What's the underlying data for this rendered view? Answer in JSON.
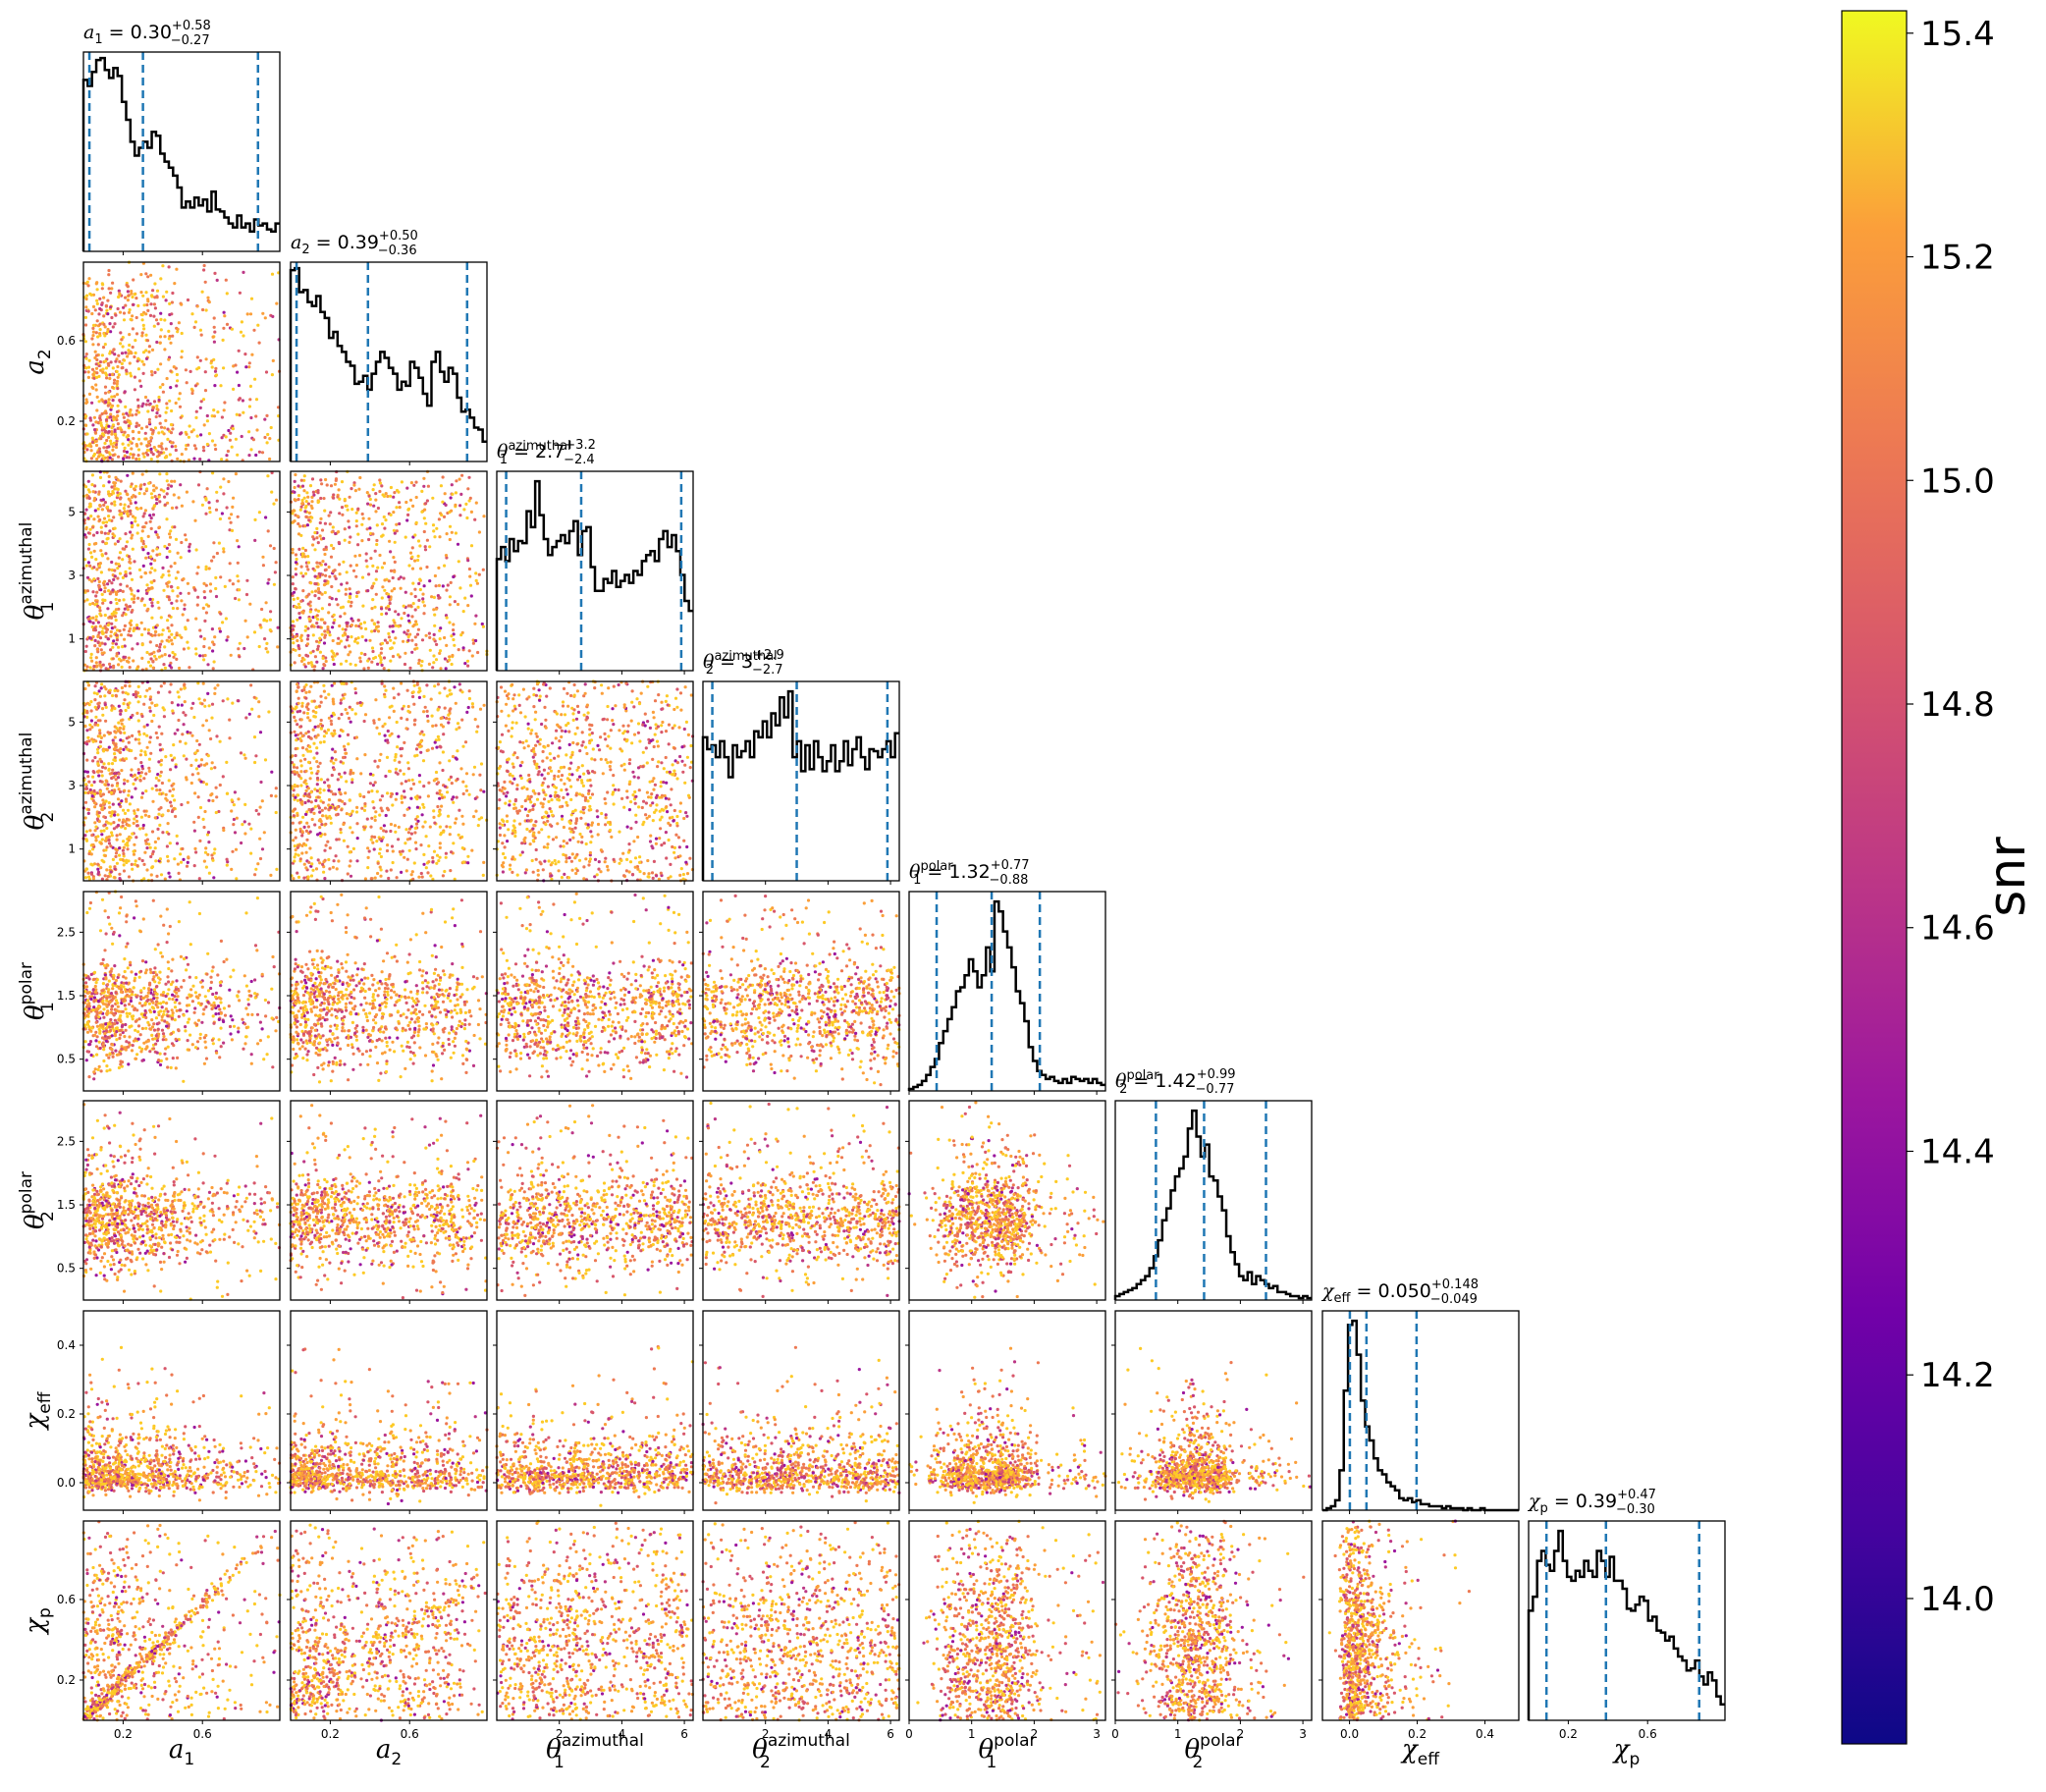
{
  "chart_data": {
    "type": "scatter",
    "description_kind": "corner plot",
    "parameters": [
      {
        "key": "a1",
        "sym": "a",
        "sub": "1",
        "sup": "",
        "range": [
          0.0,
          0.99
        ],
        "xticks": [
          "0.2",
          "0.6"
        ],
        "xtick_vals": [
          0.2,
          0.6
        ],
        "yticks": [],
        "ytick_vals": [],
        "title": {
          "value": "0.30",
          "plus": "+0.58",
          "minus": "−0.27"
        },
        "quantiles": [
          0.03,
          0.3,
          0.88
        ],
        "hist": [
          0.86,
          0.83,
          0.9,
          0.96,
          0.97,
          0.91,
          0.87,
          0.92,
          0.88,
          0.75,
          0.66,
          0.55,
          0.48,
          0.52,
          0.55,
          0.52,
          0.6,
          0.58,
          0.49,
          0.45,
          0.42,
          0.38,
          0.32,
          0.22,
          0.25,
          0.22,
          0.27,
          0.23,
          0.26,
          0.2,
          0.3,
          0.21,
          0.2,
          0.17,
          0.14,
          0.12,
          0.18,
          0.12,
          0.14,
          0.1,
          0.16,
          0.13,
          0.14,
          0.11,
          0.1,
          0.14
        ]
      },
      {
        "key": "a2",
        "sym": "a",
        "sub": "2",
        "sup": "",
        "range": [
          0.0,
          0.99
        ],
        "xticks": [
          "0.2",
          "0.6"
        ],
        "xtick_vals": [
          0.2,
          0.6
        ],
        "yticks": [
          "0.2",
          "0.6"
        ],
        "ytick_vals": [
          0.2,
          0.6
        ],
        "title": {
          "value": "0.39",
          "plus": "+0.50",
          "minus": "−0.36"
        },
        "quantiles": [
          0.03,
          0.39,
          0.89
        ],
        "hist": [
          0.96,
          0.97,
          0.85,
          0.86,
          0.8,
          0.78,
          0.83,
          0.75,
          0.72,
          0.62,
          0.65,
          0.58,
          0.55,
          0.5,
          0.48,
          0.39,
          0.4,
          0.43,
          0.36,
          0.44,
          0.5,
          0.55,
          0.52,
          0.47,
          0.44,
          0.36,
          0.4,
          0.38,
          0.5,
          0.47,
          0.42,
          0.34,
          0.28,
          0.5,
          0.55,
          0.45,
          0.4,
          0.47,
          0.44,
          0.32,
          0.25,
          0.26,
          0.22,
          0.17,
          0.16,
          0.1
        ]
      },
      {
        "key": "theta1az",
        "sym": "θ",
        "sub": "1",
        "sup": "azimuthal",
        "range": [
          0.0,
          6.28
        ],
        "xticks": [
          "2",
          "4",
          "6"
        ],
        "xtick_vals": [
          2,
          4,
          6
        ],
        "yticks": [
          "1",
          "3",
          "5"
        ],
        "ytick_vals": [
          1,
          3,
          5
        ],
        "title": {
          "value": "2.7",
          "plus": "+3.2",
          "minus": "−2.4"
        },
        "quantiles": [
          0.3,
          2.7,
          5.9
        ],
        "hist": [
          0.56,
          0.62,
          0.55,
          0.66,
          0.6,
          0.65,
          0.64,
          0.8,
          0.72,
          0.95,
          0.78,
          0.66,
          0.58,
          0.62,
          0.65,
          0.68,
          0.64,
          0.7,
          0.75,
          0.58,
          0.7,
          0.72,
          0.52,
          0.4,
          0.4,
          0.46,
          0.44,
          0.5,
          0.42,
          0.45,
          0.48,
          0.44,
          0.5,
          0.48,
          0.55,
          0.58,
          0.6,
          0.55,
          0.66,
          0.7,
          0.62,
          0.68,
          0.6,
          0.48,
          0.35,
          0.3
        ]
      },
      {
        "key": "theta2az",
        "sym": "θ",
        "sub": "2",
        "sup": "azimuthal",
        "range": [
          0.0,
          6.28
        ],
        "xticks": [
          "2",
          "4",
          "6"
        ],
        "xtick_vals": [
          2,
          4,
          6
        ],
        "yticks": [
          "1",
          "3",
          "5"
        ],
        "ytick_vals": [
          1,
          3,
          5
        ],
        "title": {
          "value": "3",
          "plus": "+2.9",
          "minus": "−2.7"
        },
        "quantiles": [
          0.3,
          3.0,
          5.9
        ],
        "hist": [
          0.72,
          0.66,
          0.68,
          0.62,
          0.7,
          0.62,
          0.52,
          0.68,
          0.62,
          0.65,
          0.7,
          0.62,
          0.75,
          0.72,
          0.8,
          0.72,
          0.84,
          0.78,
          0.92,
          0.82,
          0.95,
          0.62,
          0.7,
          0.55,
          0.68,
          0.56,
          0.7,
          0.62,
          0.55,
          0.6,
          0.68,
          0.55,
          0.6,
          0.7,
          0.58,
          0.66,
          0.72,
          0.62,
          0.56,
          0.66,
          0.65,
          0.62,
          0.66,
          0.7,
          0.62,
          0.74
        ]
      },
      {
        "key": "theta1pol",
        "sym": "θ",
        "sub": "1",
        "sup": "polar",
        "range": [
          0.0,
          3.14
        ],
        "xticks": [
          "0",
          "1",
          "2",
          "3"
        ],
        "xtick_vals": [
          0,
          1,
          2,
          3
        ],
        "yticks": [
          "0.5",
          "1.5",
          "2.5"
        ],
        "ytick_vals": [
          0.5,
          1.5,
          2.5
        ],
        "title": {
          "value": "1.32",
          "plus": "+0.77",
          "minus": "−0.88"
        },
        "quantiles": [
          0.44,
          1.32,
          2.09
        ],
        "hist": [
          0.01,
          0.02,
          0.03,
          0.05,
          0.08,
          0.12,
          0.16,
          0.24,
          0.3,
          0.36,
          0.42,
          0.5,
          0.52,
          0.58,
          0.66,
          0.6,
          0.52,
          0.58,
          0.72,
          0.6,
          0.95,
          0.9,
          0.8,
          0.72,
          0.62,
          0.5,
          0.44,
          0.35,
          0.22,
          0.15,
          0.1,
          0.08,
          0.06,
          0.07,
          0.05,
          0.04,
          0.06,
          0.04,
          0.07,
          0.06,
          0.05,
          0.06,
          0.04,
          0.06,
          0.04,
          0.03
        ]
      },
      {
        "key": "theta2pol",
        "sym": "θ",
        "sub": "2",
        "sup": "polar",
        "range": [
          0.0,
          3.14
        ],
        "xticks": [
          "0",
          "1",
          "2",
          "3"
        ],
        "xtick_vals": [
          0,
          1,
          2,
          3
        ],
        "yticks": [
          "0.5",
          "1.5",
          "2.5"
        ],
        "ytick_vals": [
          0.5,
          1.5,
          2.5
        ],
        "title": {
          "value": "1.42",
          "plus": "+0.99",
          "minus": "−0.77"
        },
        "quantiles": [
          0.65,
          1.42,
          2.41
        ],
        "hist": [
          0.02,
          0.03,
          0.04,
          0.05,
          0.06,
          0.08,
          0.1,
          0.12,
          0.16,
          0.22,
          0.3,
          0.4,
          0.46,
          0.55,
          0.62,
          0.66,
          0.72,
          0.86,
          0.95,
          0.82,
          0.72,
          0.78,
          0.62,
          0.6,
          0.52,
          0.45,
          0.32,
          0.24,
          0.18,
          0.12,
          0.1,
          0.14,
          0.08,
          0.12,
          0.1,
          0.08,
          0.06,
          0.07,
          0.04,
          0.04,
          0.03,
          0.02,
          0.02,
          0.01,
          0.02,
          0.01
        ]
      },
      {
        "key": "chieff",
        "sym": "χ",
        "sub": "eff",
        "sup": "",
        "range": [
          -0.08,
          0.5
        ],
        "xticks": [
          "0.0",
          "0.2",
          "0.4"
        ],
        "xtick_vals": [
          0.0,
          0.2,
          0.4
        ],
        "yticks": [
          "0.0",
          "0.2",
          "0.4"
        ],
        "ytick_vals": [
          0.0,
          0.2,
          0.4
        ],
        "title": {
          "value": "0.050",
          "plus": "+0.148",
          "minus": "−0.049"
        },
        "quantiles": [
          0.001,
          0.05,
          0.198
        ],
        "hist": [
          0.0,
          0.01,
          0.02,
          0.05,
          0.2,
          0.6,
          0.93,
          0.95,
          0.78,
          0.55,
          0.42,
          0.35,
          0.26,
          0.2,
          0.18,
          0.14,
          0.12,
          0.1,
          0.06,
          0.05,
          0.06,
          0.04,
          0.05,
          0.03,
          0.03,
          0.02,
          0.02,
          0.02,
          0.01,
          0.02,
          0.01,
          0.01,
          0.01,
          0.0,
          0.01,
          0.0,
          0.0,
          0.01,
          0.0,
          0.0,
          0.0,
          0.0,
          0.0,
          0.0,
          0.0,
          0.0
        ]
      },
      {
        "key": "chip",
        "sym": "χ",
        "sub": "p",
        "sup": "",
        "range": [
          0.0,
          0.99
        ],
        "xticks": [
          "0.2",
          "0.6"
        ],
        "xtick_vals": [
          0.2,
          0.6
        ],
        "yticks": [
          "0.2",
          "0.6"
        ],
        "ytick_vals": [
          0.2,
          0.6
        ],
        "title": {
          "value": "0.39",
          "plus": "+0.47",
          "minus": "−0.30"
        },
        "quantiles": [
          0.09,
          0.39,
          0.86
        ],
        "hist": [
          0.55,
          0.62,
          0.8,
          0.85,
          0.78,
          0.75,
          0.85,
          0.95,
          0.8,
          0.72,
          0.7,
          0.75,
          0.72,
          0.8,
          0.75,
          0.72,
          0.85,
          0.8,
          0.72,
          0.82,
          0.7,
          0.7,
          0.66,
          0.56,
          0.55,
          0.58,
          0.62,
          0.6,
          0.5,
          0.52,
          0.45,
          0.44,
          0.4,
          0.42,
          0.36,
          0.32,
          0.3,
          0.25,
          0.26,
          0.3,
          0.22,
          0.18,
          0.24,
          0.2,
          0.12,
          0.08
        ]
      }
    ],
    "colorbar": {
      "label": "snr",
      "range": [
        13.87,
        15.42
      ],
      "ticks": [
        "14.0",
        "14.2",
        "14.4",
        "14.6",
        "14.8",
        "15.0",
        "15.2",
        "15.4"
      ],
      "tick_vals": [
        14.0,
        14.2,
        14.4,
        14.6,
        14.8,
        15.0,
        15.2,
        15.4
      ],
      "colormap": "plasma"
    },
    "colors": {
      "hist": "#000000",
      "quantile": "#1f77b4"
    }
  }
}
